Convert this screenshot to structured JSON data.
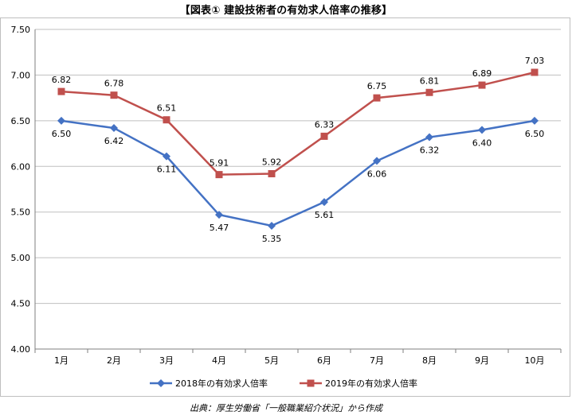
{
  "chart_data": {
    "type": "line",
    "title": "【図表① 建設技術者の有効求人倍率の推移】",
    "categories": [
      "1月",
      "2月",
      "3月",
      "4月",
      "5月",
      "6月",
      "7月",
      "8月",
      "9月",
      "10月"
    ],
    "series": [
      {
        "name": "2018年の有効求人倍率",
        "values": [
          6.5,
          6.42,
          6.11,
          5.47,
          5.35,
          5.61,
          6.06,
          6.32,
          6.4,
          6.5
        ],
        "labels": [
          "6.50",
          "6.42",
          "6.11",
          "5.47",
          "5.35",
          "5.61",
          "6.06",
          "6.32",
          "6.40",
          "6.50"
        ],
        "color": "#4472C4",
        "marker": "diamond",
        "label_position": "below"
      },
      {
        "name": "2019年の有効求人倍率",
        "values": [
          6.82,
          6.78,
          6.51,
          5.91,
          5.92,
          6.33,
          6.75,
          6.81,
          6.89,
          7.03
        ],
        "labels": [
          "6.82",
          "6.78",
          "6.51",
          "5.91",
          "5.92",
          "6.33",
          "6.75",
          "6.81",
          "6.89",
          "7.03"
        ],
        "color": "#C0504D",
        "marker": "square",
        "label_position": "above"
      }
    ],
    "ylim": [
      4.0,
      7.5
    ],
    "yticks": [
      "4.00",
      "4.50",
      "5.00",
      "5.50",
      "6.00",
      "6.50",
      "7.00",
      "7.50"
    ],
    "ytick_values": [
      4.0,
      4.5,
      5.0,
      5.5,
      6.0,
      6.5,
      7.0,
      7.5
    ],
    "grid": "horizontal",
    "legend_position": "bottom",
    "source": "出典：厚生労働省「一般職業紹介状況」から作成"
  }
}
